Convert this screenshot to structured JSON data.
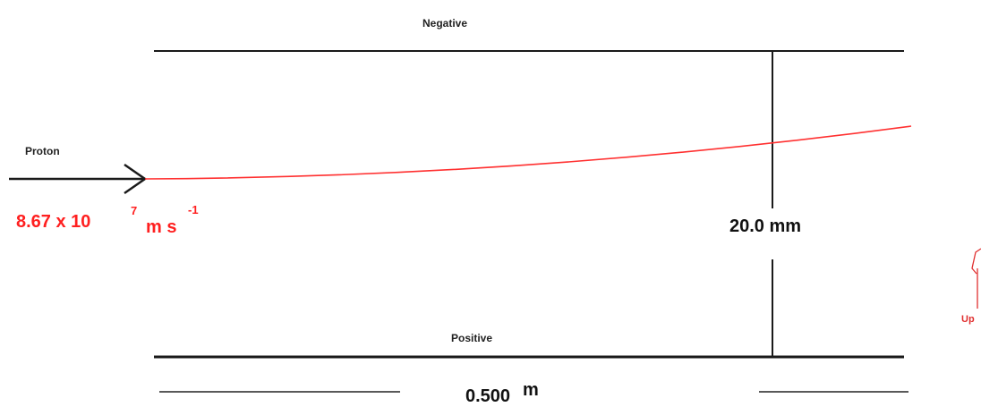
{
  "labels": {
    "top_plate": "Negative",
    "bottom_plate": "Positive",
    "particle": "Proton",
    "speed_mantissa": "8.67 x 10",
    "speed_exponent": "7",
    "speed_unit": "m s",
    "speed_unit_exponent": "-1",
    "separation": "20.0 mm",
    "length_value": "0.500",
    "length_unit": "m",
    "deflection_direction": "Up"
  },
  "colors": {
    "plate": "#1a1a1a",
    "path": "#ff3030",
    "speed_text": "#ff2020",
    "up_text": "#e03030",
    "dimension": "#222222"
  }
}
